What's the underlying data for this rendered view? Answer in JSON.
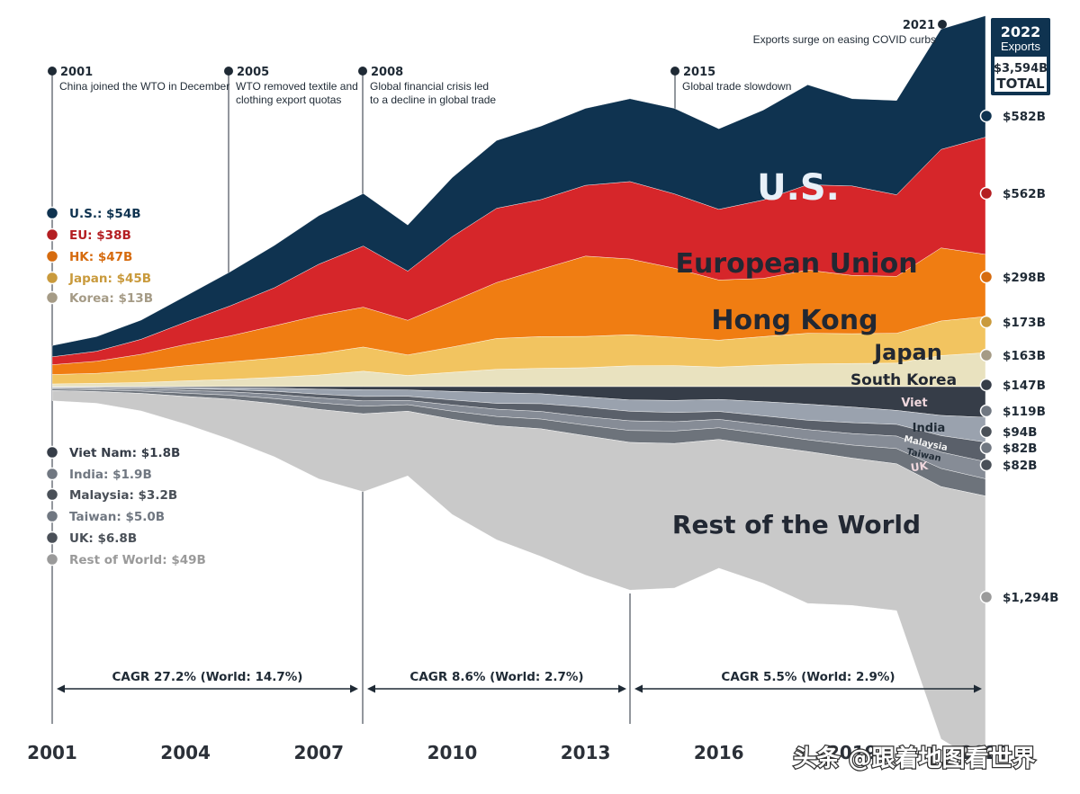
{
  "chart_data": {
    "type": "area",
    "subtype": "streamgraph",
    "x": [
      2001,
      2002,
      2003,
      2004,
      2005,
      2006,
      2007,
      2008,
      2009,
      2010,
      2011,
      2012,
      2013,
      2014,
      2015,
      2016,
      2017,
      2018,
      2019,
      2020,
      2021,
      2022
    ],
    "x_ticks": [
      "2001",
      "2004",
      "2007",
      "2010",
      "2013",
      "2016",
      "2019",
      "2022"
    ],
    "series": [
      {
        "name": "U.S.",
        "label": "U.S.",
        "color": "#0f3350",
        "values": [
          54,
          70,
          92,
          125,
          163,
          203,
          233,
          252,
          221,
          283,
          325,
          352,
          369,
          397,
          410,
          386,
          431,
          479,
          418,
          452,
          577,
          582
        ]
      },
      {
        "name": "European Union",
        "label": "European Union",
        "color": "#d6262a",
        "values": [
          38,
          48,
          72,
          107,
          144,
          182,
          245,
          293,
          236,
          311,
          356,
          334,
          339,
          371,
          356,
          339,
          376,
          409,
          429,
          391,
          472,
          562
        ]
      },
      {
        "name": "Hong Kong",
        "label": "Hong Kong",
        "color": "#f07d12",
        "values": [
          47,
          58,
          76,
          101,
          124,
          155,
          184,
          191,
          166,
          218,
          268,
          323,
          385,
          363,
          331,
          288,
          279,
          303,
          279,
          273,
          350,
          298
        ]
      },
      {
        "name": "Japan",
        "label": "Japan",
        "color": "#f2c460",
        "values": [
          45,
          48,
          59,
          73,
          84,
          92,
          102,
          116,
          98,
          121,
          148,
          152,
          150,
          149,
          136,
          129,
          137,
          147,
          143,
          143,
          166,
          173
        ]
      },
      {
        "name": "South Korea",
        "label": "South Korea",
        "color": "#e9e2bf",
        "values": [
          13,
          16,
          20,
          28,
          35,
          45,
          56,
          74,
          54,
          69,
          83,
          88,
          91,
          100,
          101,
          94,
          103,
          109,
          111,
          113,
          149,
          163
        ]
      },
      {
        "name": "Viet Nam",
        "label": "Viet",
        "color": "#363d48",
        "values": [
          1.8,
          2.1,
          3.2,
          4.3,
          5.6,
          7.5,
          12,
          15,
          16,
          23,
          29,
          34,
          49,
          64,
          66,
          61,
          72,
          84,
          98,
          114,
          138,
          147
        ]
      },
      {
        "name": "India",
        "label": "India",
        "color": "#9aa2ae",
        "values": [
          1.9,
          2.7,
          3.3,
          5.9,
          8.9,
          15,
          24,
          32,
          30,
          41,
          51,
          48,
          49,
          54,
          58,
          58,
          68,
          77,
          75,
          67,
          97,
          119
        ]
      },
      {
        "name": "Malaysia",
        "label": "Malaysia",
        "color": "#5a606a",
        "values": [
          3.2,
          4.3,
          6.1,
          8.1,
          10,
          14,
          18,
          21,
          20,
          24,
          28,
          37,
          46,
          46,
          44,
          38,
          42,
          45,
          52,
          56,
          79,
          94
        ]
      },
      {
        "name": "Taiwan",
        "label": "Taiwan",
        "color": "#868c96",
        "values": [
          5,
          6.6,
          9,
          13.5,
          16.5,
          20.7,
          23.5,
          25.9,
          20.5,
          29.7,
          35.1,
          36.8,
          40.6,
          46.3,
          45,
          40.4,
          44,
          48.7,
          55.1,
          60.1,
          78.4,
          82
        ]
      },
      {
        "name": "UK",
        "label": "UK",
        "color": "#6d737b",
        "values": [
          6.8,
          8.1,
          10.8,
          15,
          18.9,
          24.2,
          31.7,
          36.1,
          31.3,
          38.8,
          44.1,
          46.3,
          50.9,
          57.1,
          59.6,
          55.7,
          56.7,
          56.6,
          62.4,
          72.7,
          87,
          82
        ]
      },
      {
        "name": "Rest of the World",
        "label": "Rest of the World",
        "color": "#c9c9c9",
        "values": [
          49,
          56,
          84,
          133,
          193,
          255,
          333,
          374,
          310,
          456,
          547,
          612,
          668,
          708,
          693,
          617,
          660,
          728,
          706,
          704,
          1210,
          1294
        ]
      }
    ],
    "yaxis": "none",
    "grid": false,
    "legend": "direct labels"
  },
  "annotations": [
    {
      "year": "2001",
      "text": [
        "China joined the WTO in December"
      ]
    },
    {
      "year": "2005",
      "text": [
        "WTO removed textile and",
        "clothing export quotas"
      ]
    },
    {
      "year": "2008",
      "text": [
        "Global financial crisis led",
        "to a decline in global trade"
      ]
    },
    {
      "year": "2015",
      "text": [
        "Global trade slowdown"
      ]
    },
    {
      "year": "2021",
      "text": [
        "Exports surge on easing COVID curbs"
      ]
    }
  ],
  "start_labels": [
    {
      "text": "U.S.: $54B",
      "color": "#0f3350"
    },
    {
      "text": "EU: $38B",
      "color": "#b41e22"
    },
    {
      "text": "HK: $47B",
      "color": "#d66b0e"
    },
    {
      "text": "Japan: $45B",
      "color": "#c99a3c"
    },
    {
      "text": "Korea: $13B",
      "color": "#a59b86"
    },
    {
      "text": "Viet Nam: $1.8B",
      "color": "#363d48"
    },
    {
      "text": "India: $1.9B",
      "color": "#707781"
    },
    {
      "text": "Malaysia: $3.2B",
      "color": "#4a5058"
    },
    {
      "text": "Taiwan: $5.0B",
      "color": "#707781"
    },
    {
      "text": "UK: $6.8B",
      "color": "#4a5058"
    },
    {
      "text": "Rest of World: $49B",
      "color": "#9a9a9a"
    }
  ],
  "end_labels": [
    {
      "text": "$582B",
      "color": "#0f3350"
    },
    {
      "text": "$562B",
      "color": "#b41e22"
    },
    {
      "text": "$298B",
      "color": "#d66b0e"
    },
    {
      "text": "$173B",
      "color": "#c99a3c"
    },
    {
      "text": "$163B",
      "color": "#a59b86"
    },
    {
      "text": "$147B",
      "color": "#363d48"
    },
    {
      "text": "$119B",
      "color": "#707781"
    },
    {
      "text": "$94B",
      "color": "#4a5058"
    },
    {
      "text": "$82B",
      "color": "#707781"
    },
    {
      "text": "$82B",
      "color": "#4a5058"
    },
    {
      "text": "$1,294B",
      "color": "#9a9a9a"
    }
  ],
  "total_box": {
    "line1": "2022",
    "line2": "Exports",
    "value": "$3,594B",
    "total": "TOTAL"
  },
  "cagr": [
    {
      "text": "CAGR 27.2% (World: 14.7%)"
    },
    {
      "text": "CAGR 8.6% (World: 2.7%)"
    },
    {
      "text": "CAGR 5.5% (World: 2.9%)"
    }
  ],
  "watermark": "头条 @跟着地图看世界"
}
